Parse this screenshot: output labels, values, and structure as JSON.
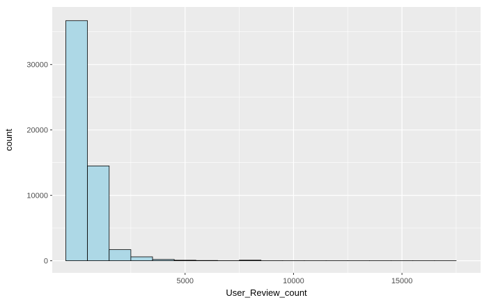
{
  "chart_data": {
    "type": "bar",
    "xlabel": "User_Review_count",
    "ylabel": "count",
    "xlim": [
      -1125,
      18625
    ],
    "ylim": [
      -1850,
      38800
    ],
    "x_ticks": [
      {
        "value": 5000,
        "label": "5000"
      },
      {
        "value": 10000,
        "label": "10000"
      },
      {
        "value": 15000,
        "label": "15000"
      }
    ],
    "y_ticks": [
      {
        "value": 0,
        "label": "0"
      },
      {
        "value": 10000,
        "label": "10000"
      },
      {
        "value": 20000,
        "label": "20000"
      },
      {
        "value": 30000,
        "label": "30000"
      }
    ],
    "bin_width": 1000,
    "bins": [
      {
        "x0": -500,
        "x1": 500,
        "count": 36700
      },
      {
        "x0": 500,
        "x1": 1500,
        "count": 14500
      },
      {
        "x0": 1500,
        "x1": 2500,
        "count": 1700
      },
      {
        "x0": 2500,
        "x1": 3500,
        "count": 600
      },
      {
        "x0": 3500,
        "x1": 4500,
        "count": 200
      },
      {
        "x0": 4500,
        "x1": 5500,
        "count": 80
      },
      {
        "x0": 5500,
        "x1": 6500,
        "count": 40
      },
      {
        "x0": 6500,
        "x1": 7500,
        "count": 10
      },
      {
        "x0": 7500,
        "x1": 8500,
        "count": 90
      },
      {
        "x0": 8500,
        "x1": 9500,
        "count": 5
      },
      {
        "x0": 9500,
        "x1": 10500,
        "count": 2
      },
      {
        "x0": 10500,
        "x1": 11500,
        "count": 1
      },
      {
        "x0": 11500,
        "x1": 12500,
        "count": 1
      },
      {
        "x0": 12500,
        "x1": 13500,
        "count": 1
      },
      {
        "x0": 13500,
        "x1": 14500,
        "count": 1
      },
      {
        "x0": 14500,
        "x1": 15500,
        "count": 1
      },
      {
        "x0": 15500,
        "x1": 16500,
        "count": 1
      },
      {
        "x0": 16500,
        "x1": 17500,
        "count": 1
      }
    ],
    "grid": true,
    "colors": {
      "panel": "#ebebeb",
      "grid": "#ffffff",
      "bar_fill": "#add8e6",
      "bar_stroke": "#000000"
    }
  }
}
